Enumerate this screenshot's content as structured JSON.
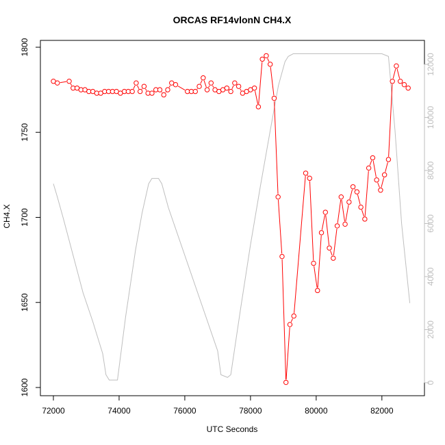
{
  "chart_data": {
    "type": "line",
    "title": "ORCAS RF14vlonN CH4.X",
    "xlabel": "UTC Seconds",
    "ylabel": "CH4.X",
    "xlim": [
      72000,
      82900
    ],
    "ylim": [
      1600,
      1800
    ],
    "y2lim": [
      0,
      12500
    ],
    "x_ticks": [
      72000,
      74000,
      76000,
      78000,
      80000,
      82000
    ],
    "y_ticks": [
      1600,
      1650,
      1700,
      1750,
      1800
    ],
    "y2_ticks": [
      0,
      2000,
      4000,
      6000,
      8000,
      10000,
      12000
    ],
    "grid": false,
    "series": [
      {
        "color": "#ff0000",
        "axis": "left",
        "style": "line+points",
        "x": [
          72000,
          72120,
          72480,
          72600,
          72720,
          72840,
          72960,
          73080,
          73200,
          73320,
          73440,
          73560,
          73680,
          73800,
          73920,
          74040,
          74160,
          74280,
          74400,
          74520,
          74640,
          74760,
          74880,
          75000,
          75120,
          75240,
          75360,
          75480,
          75600,
          75720,
          76080,
          76200,
          76320,
          76440,
          76560,
          76680,
          76800,
          76920,
          77040,
          77160,
          77280,
          77400,
          77520,
          77640,
          77760,
          77880,
          78000,
          78120,
          78240,
          78360,
          78480,
          78600,
          78720,
          78840,
          78960,
          79080,
          79200,
          79320,
          79680,
          79800,
          79920,
          80040,
          80160,
          80280,
          80400,
          80520,
          80640,
          80760,
          80880,
          81000,
          81120,
          81240,
          81360,
          81480,
          81600,
          81720,
          81840,
          81960,
          82080,
          82200,
          82320,
          82440,
          82560,
          82680,
          82800
        ],
        "y": [
          1780,
          1779,
          1780,
          1776,
          1776,
          1775,
          1775,
          1774,
          1774,
          1773,
          1773,
          1774,
          1774,
          1774,
          1774,
          1773,
          1774,
          1774,
          1774,
          1779,
          1774,
          1777,
          1773,
          1773,
          1775,
          1775,
          1772,
          1775,
          1779,
          1778,
          1774,
          1774,
          1774,
          1777,
          1782,
          1775,
          1779,
          1775,
          1774,
          1775,
          1776,
          1774,
          1779,
          1777,
          1773,
          1774,
          1775,
          1776,
          1765,
          1793,
          1795,
          1790,
          1770,
          1712,
          1677,
          1603,
          1637,
          1642,
          1726,
          1723,
          1673,
          1657,
          1691,
          1703,
          1682,
          1676,
          1695,
          1712,
          1696,
          1709,
          1718,
          1715,
          1706,
          1699,
          1729,
          1735,
          1722,
          1716,
          1725,
          1734,
          1780,
          1789,
          1780,
          1778,
          1776
        ]
      },
      {
        "color": "#bebebe",
        "axis": "right",
        "style": "line",
        "x": [
          72000,
          72120,
          72300,
          72600,
          72900,
          73200,
          73500,
          73600,
          73700,
          73950,
          74200,
          74500,
          74700,
          74900,
          75000,
          75200,
          75300,
          75500,
          76000,
          76500,
          77000,
          77100,
          77300,
          77400,
          77700,
          78000,
          78300,
          78600,
          78850,
          79050,
          79150,
          79300,
          79500,
          80000,
          81000,
          82000,
          82200,
          82400,
          82600,
          82850
        ],
        "y": [
          7500,
          7000,
          6200,
          4800,
          3400,
          2300,
          1100,
          300,
          100,
          100,
          2500,
          5000,
          6400,
          7500,
          7700,
          7700,
          7500,
          6600,
          4800,
          3000,
          1200,
          300,
          200,
          300,
          2800,
          5200,
          7400,
          9500,
          11200,
          12100,
          12300,
          12400,
          12400,
          12400,
          12400,
          12400,
          12300,
          9500,
          6000,
          3000
        ]
      }
    ]
  }
}
